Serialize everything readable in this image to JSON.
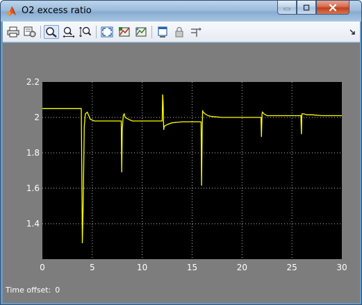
{
  "window": {
    "title": "O2 excess ratio",
    "icon": "matlab-icon",
    "controls": [
      "minimize-icon",
      "maximize-icon",
      "close-icon"
    ]
  },
  "toolbar": {
    "items": [
      {
        "name": "print-button",
        "icon": "printer-icon"
      },
      {
        "name": "parameters-button",
        "icon": "parameters-icon"
      },
      {
        "name": "zoom-button",
        "icon": "zoom-icon",
        "active": true
      },
      {
        "name": "zoom-x-button",
        "icon": "zoom-x-icon"
      },
      {
        "name": "zoom-y-button",
        "icon": "zoom-y-icon"
      },
      {
        "name": "autoscale-button",
        "icon": "autoscale-icon"
      },
      {
        "name": "save-axes-button",
        "icon": "save-axes-icon"
      },
      {
        "name": "restore-axes-button",
        "icon": "restore-axes-icon"
      },
      {
        "name": "float-button",
        "icon": "float-icon"
      },
      {
        "name": "lock-button",
        "icon": "lock-icon"
      },
      {
        "name": "signal-selector-button",
        "icon": "signal-selector-icon"
      }
    ]
  },
  "status": {
    "label": "Time offset:",
    "value": "0"
  },
  "colors": {
    "plot_background": "#000000",
    "line": "#ffff00",
    "figure_background": "#7d7d7d",
    "axis_text": "#ffffff"
  },
  "chart_data": {
    "type": "line",
    "title": "",
    "xlabel": "",
    "ylabel": "",
    "xlim": [
      0,
      30
    ],
    "ylim": [
      1.2,
      2.2
    ],
    "x_ticks": [
      0,
      5,
      10,
      15,
      20,
      25,
      30
    ],
    "y_ticks": [
      1.4,
      1.6,
      1.8,
      2,
      2.2
    ],
    "x_tick_labels": [
      "0",
      "5",
      "10",
      "15",
      "20",
      "25",
      "30"
    ],
    "y_tick_labels": [
      "1.4",
      "1.6",
      "1.8",
      "2",
      "2.2"
    ],
    "grid": true,
    "series": [
      {
        "x": [
          0,
          3.9,
          3.95,
          4.0,
          4.1,
          4.2,
          4.3,
          4.5,
          4.8,
          5.2,
          6,
          7.9,
          7.95,
          8.0,
          8.1,
          8.2,
          8.3,
          8.6,
          9,
          10,
          11,
          12.0,
          12.05,
          12.1,
          12.15,
          12.2,
          12.5,
          13,
          14,
          15.9,
          15.95,
          16.0,
          16.05,
          16.1,
          16.2,
          16.3,
          16.6,
          17,
          18,
          20,
          21.9,
          21.95,
          22.0,
          22.05,
          22.2,
          22.5,
          23,
          25,
          25.9,
          25.95,
          26.0,
          26.05,
          26.2,
          26.5,
          27,
          28,
          29,
          30
        ],
        "y": [
          2.05,
          2.05,
          1.72,
          1.29,
          1.55,
          1.95,
          2.02,
          2.03,
          1.99,
          1.98,
          1.98,
          1.98,
          1.69,
          1.93,
          2.01,
          2.02,
          2.0,
          1.99,
          1.98,
          1.98,
          1.98,
          1.98,
          2.13,
          2.08,
          1.93,
          1.95,
          1.96,
          1.97,
          1.975,
          1.975,
          1.615,
          1.9,
          2.04,
          2.03,
          2.025,
          2.02,
          2.01,
          2.005,
          2.0,
          2.0,
          2.0,
          1.89,
          2.02,
          2.03,
          2.02,
          2.01,
          2.01,
          2.01,
          2.01,
          1.905,
          2.02,
          2.02,
          2.02,
          2.015,
          2.015,
          2.01,
          2.01,
          2.01
        ]
      }
    ]
  }
}
